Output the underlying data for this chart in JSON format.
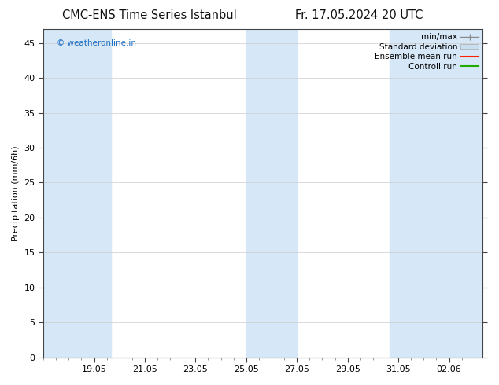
{
  "title_left": "CMC-ENS Time Series Istanbul",
  "title_right": "Fr. 17.05.2024 20 UTC",
  "ylabel": "Precipitation (mm/6h)",
  "watermark": "© weatheronline.in",
  "watermark_color": "#1a6ec7",
  "ylim": [
    0,
    47
  ],
  "yticks": [
    0,
    5,
    10,
    15,
    20,
    25,
    30,
    35,
    40,
    45
  ],
  "background_color": "#ffffff",
  "plot_bg_color": "#ffffff",
  "shaded_band_color": "#d6e8f7",
  "legend_items": [
    {
      "label": "min/max",
      "color": "#999999",
      "style": "errorbar"
    },
    {
      "label": "Standard deviation",
      "color": "#c8dff0",
      "style": "bar"
    },
    {
      "label": "Ensemble mean run",
      "color": "#ff0000",
      "style": "line"
    },
    {
      "label": "Controll run",
      "color": "#00aa00",
      "style": "line"
    }
  ],
  "x_tick_labels": [
    "19.05",
    "21.05",
    "23.05",
    "25.05",
    "27.05",
    "29.05",
    "31.05",
    "02.06"
  ],
  "font_family": "DejaVu Sans",
  "title_fontsize": 10.5,
  "axis_label_fontsize": 8,
  "tick_fontsize": 8,
  "legend_fontsize": 7.5,
  "x_min": 0.0,
  "x_max": 17.333,
  "bands": [
    [
      0.0,
      1.333
    ],
    [
      1.333,
      2.667
    ],
    [
      8.0,
      9.0
    ],
    [
      9.0,
      10.0
    ],
    [
      13.667,
      15.0
    ],
    [
      15.0,
      17.333
    ]
  ]
}
